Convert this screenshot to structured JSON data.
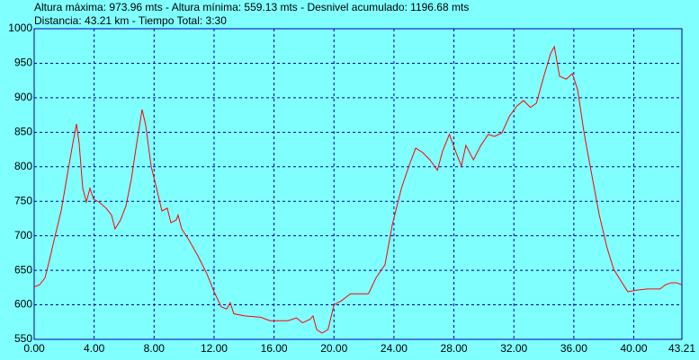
{
  "chart_data": {
    "type": "line",
    "title": "Altura máxima: 973.96 mts - Altura mínima: 559.13 mts - Desnivel acumulado: 1196.68 mts",
    "subtitle": "Distancia: 43.21 km - Tiempo Total: 3:30",
    "x": [
      0,
      0.36,
      0.72,
      1.02,
      1.44,
      1.8,
      2.16,
      2.52,
      2.82,
      3.0,
      3.24,
      3.48,
      3.72,
      3.96,
      4.32,
      4.8,
      5.16,
      5.4,
      5.76,
      6.12,
      6.48,
      6.84,
      7.2,
      7.44,
      7.8,
      8.16,
      8.52,
      8.88,
      9.12,
      9.48,
      9.6,
      9.84,
      10.32,
      10.92,
      11.52,
      12.0,
      12.48,
      12.84,
      13.08,
      13.32,
      14.04,
      15.12,
      15.72,
      16.93,
      17.5,
      17.9,
      18.4,
      18.6,
      18.85,
      19.2,
      19.6,
      20.0,
      20.5,
      21.1,
      21.7,
      22.3,
      22.8,
      23.4,
      23.9,
      24.5,
      25.0,
      25.45,
      25.9,
      26.4,
      26.9,
      27.25,
      27.7,
      28.1,
      28.5,
      28.8,
      29.3,
      29.8,
      30.3,
      30.7,
      31.2,
      31.7,
      32.2,
      32.65,
      33.1,
      33.5,
      34.0,
      34.45,
      34.7,
      35.05,
      35.5,
      35.9,
      36.25,
      36.7,
      37.2,
      37.7,
      38.2,
      38.65,
      39.1,
      39.6,
      40.1,
      40.9,
      41.75,
      42.1,
      42.5,
      42.85,
      43.21
    ],
    "series": [
      {
        "name": "Altura",
        "color": "#ff0000",
        "values": [
          626,
          629,
          639,
          665,
          704,
          736,
          782,
          827,
          862,
          834,
          769,
          749,
          769,
          753,
          749,
          740,
          730,
          710,
          723,
          743,
          782,
          834,
          883,
          860,
          801,
          769,
          736,
          740,
          719,
          723,
          730,
          710,
          694,
          671,
          645,
          619,
          597,
          594,
          603,
          587,
          584,
          582,
          577,
          577,
          581,
          574,
          579,
          584,
          564,
          559,
          564,
          600,
          606,
          616,
          616,
          616,
          639,
          658,
          717,
          769,
          801,
          827,
          821,
          810,
          795,
          823,
          847,
          823,
          801,
          831,
          810,
          831,
          847,
          844,
          849,
          873,
          888,
          896,
          886,
          892,
          931,
          964,
          974,
          931,
          927,
          935,
          912,
          847,
          788,
          730,
          684,
          652,
          636,
          619,
          621,
          623,
          623,
          629,
          632,
          632,
          629
        ]
      }
    ],
    "xlim": [
      0,
      43.21
    ],
    "xticks": [
      {
        "value": 0,
        "label": "0.00"
      },
      {
        "value": 4,
        "label": "4.00"
      },
      {
        "value": 8,
        "label": "8.00"
      },
      {
        "value": 12,
        "label": "12.00"
      },
      {
        "value": 16,
        "label": "16.00"
      },
      {
        "value": 20,
        "label": "20.00"
      },
      {
        "value": 24,
        "label": "24.00"
      },
      {
        "value": 28,
        "label": "28.00"
      },
      {
        "value": 32,
        "label": "32.00"
      },
      {
        "value": 36,
        "label": "36.00"
      },
      {
        "value": 40,
        "label": "40.00"
      },
      43.21
    ],
    "ylim": [
      550,
      1000
    ],
    "yticks": [
      550,
      600,
      650,
      700,
      750,
      800,
      850,
      900,
      950,
      1000
    ],
    "grid": true
  }
}
